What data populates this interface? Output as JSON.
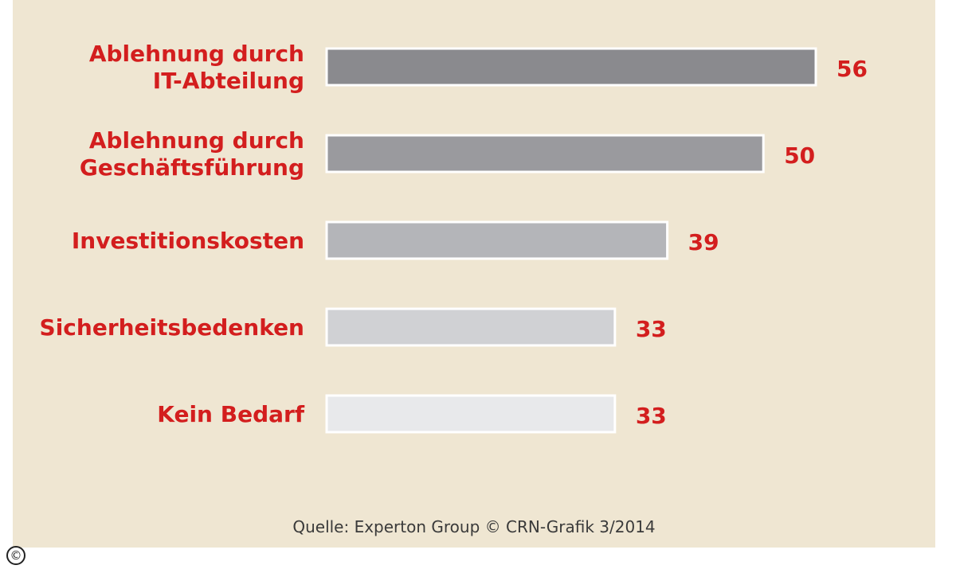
{
  "chart_data": {
    "type": "bar",
    "orientation": "horizontal",
    "categories": [
      [
        "Ablehnung durch",
        "IT-Abteilung"
      ],
      [
        "Ablehnung durch",
        "Geschäftsführung"
      ],
      [
        "Investitionskosten"
      ],
      [
        "Sicherheitsbedenken"
      ],
      [
        "Kein Bedarf"
      ]
    ],
    "values": [
      56,
      50,
      39,
      33,
      33
    ],
    "value_labels": [
      "56",
      "50",
      "39",
      "33",
      "33"
    ],
    "bar_colors": [
      "#8a8a8e",
      "#9a9a9e",
      "#b4b5b9",
      "#d0d1d4",
      "#e8e9eb"
    ],
    "label_color": "#d31e1e",
    "xlim": [
      0,
      56
    ],
    "grid": false,
    "legend": "none"
  },
  "source": "Quelle: Experton Group © CRN-Grafik 3/2014",
  "copyright_icon": "©"
}
